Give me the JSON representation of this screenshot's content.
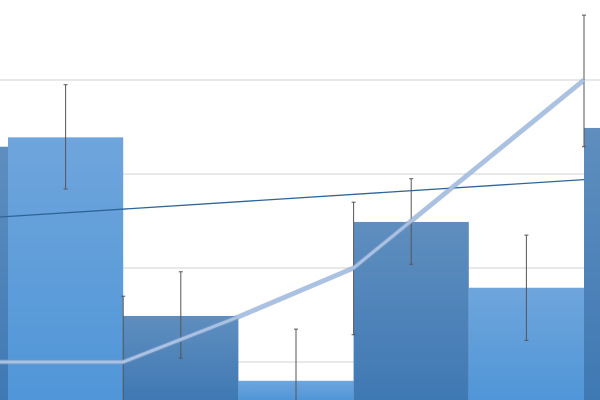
{
  "chart_data": {
    "type": "bar",
    "title": "",
    "xlabel": "",
    "ylabel": "",
    "ylim": [
      0.6,
      4.85
    ],
    "grid": true,
    "gridlines": [
      1,
      2,
      3,
      4
    ],
    "bars": [
      {
        "index": -1,
        "value": 3.29,
        "shade": "dark"
      },
      {
        "index": 0,
        "value": 3.39,
        "shade": "light",
        "err": [
          2.84,
          3.95
        ]
      },
      {
        "index": 1,
        "value": 1.49,
        "shade": "dark",
        "err": [
          1.04,
          1.96
        ]
      },
      {
        "index": 2,
        "value": 0.8,
        "shade": "light",
        "err": [
          0.5,
          1.35
        ]
      },
      {
        "index": 3,
        "value": 2.49,
        "shade": "dark",
        "err": [
          2.04,
          2.95
        ]
      },
      {
        "index": 4,
        "value": 1.79,
        "shade": "light",
        "err": [
          1.23,
          2.35
        ]
      },
      {
        "index": 5,
        "value": 3.49,
        "shade": "dark"
      }
    ],
    "line": {
      "x": [
        -0.1,
        0,
        1,
        2,
        3,
        4,
        5
      ],
      "y": [
        1.0,
        1.0,
        1.0,
        1.48,
        2.0,
        3.0,
        4.0
      ],
      "errors": [
        {
          "x": 1,
          "err": [
            0.3,
            1.7
          ]
        },
        {
          "x": 3,
          "err": [
            1.29,
            2.7
          ]
        },
        {
          "x": 5,
          "err": [
            3.29,
            4.69
          ]
        }
      ]
    },
    "trendline": {
      "x": [
        -0.1,
        5
      ],
      "y": [
        2.54,
        2.94
      ]
    },
    "colors": {
      "bar_light": "#5b9bd5",
      "bar_dark": "#4a7fb5",
      "line": "#a9c2e4",
      "trendline": "#2e6598",
      "grid": "#d9d9d9",
      "error": "#555555"
    }
  }
}
